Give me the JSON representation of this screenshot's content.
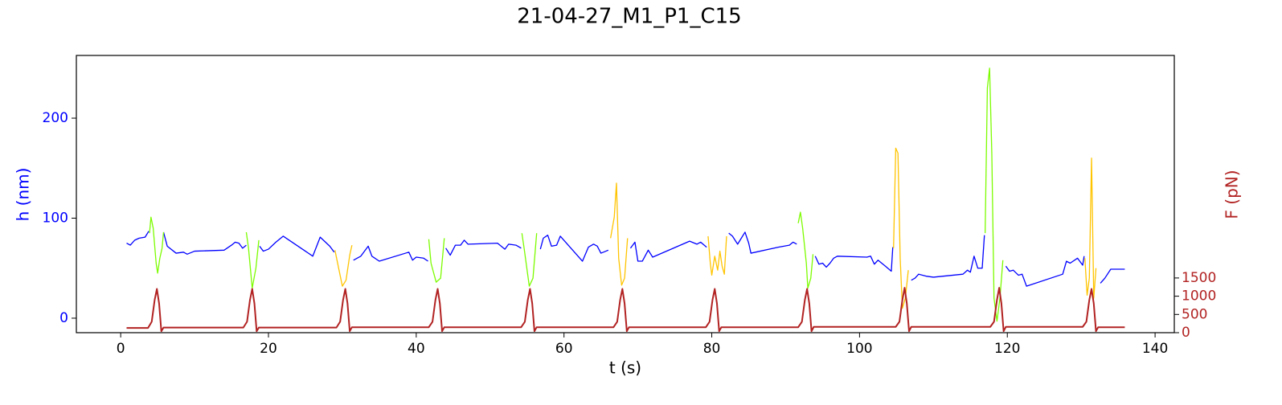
{
  "chart_data": {
    "type": "line",
    "title": "21-04-27_M1_P1_C15",
    "xlabel": "t (s)",
    "ylabel": "h (nm)",
    "y2label": "F (pN)",
    "ylabel_color": "#0000ff",
    "y2label_color": "#b22222",
    "xlim": [
      -6,
      142.6
    ],
    "ylim": [
      -14.5,
      262.7
    ],
    "y2lim": [
      0,
      7600
    ],
    "xticks": [
      0,
      20,
      40,
      60,
      80,
      100,
      120,
      140
    ],
    "yticks": [
      0,
      100,
      200
    ],
    "y2ticks": [
      0,
      500,
      1000,
      1500
    ],
    "series": [
      {
        "color": "#0000ff",
        "x": [
          0.8,
          1.3,
          1.9,
          2.5,
          3.3,
          3.8,
          null,
          5.8,
          6.3,
          7.5,
          8.5,
          9.0,
          10,
          14,
          15,
          15.5,
          16,
          16.5,
          17,
          null,
          18.8,
          19.3,
          20,
          21,
          22,
          26,
          27,
          28.3,
          28.9,
          null,
          31.5,
          32.5,
          33.5,
          34,
          35,
          39,
          39.5,
          40,
          41,
          41.6,
          null,
          44,
          44.6,
          45.3,
          46,
          46.5,
          47,
          51,
          52,
          52.5,
          53.5,
          54.2,
          null,
          56.8,
          57.2,
          57.8,
          58.3,
          59,
          59.5,
          62.5,
          63.3,
          64,
          64.5,
          65,
          66,
          null,
          69,
          69.6,
          70,
          70.6,
          71.4,
          72,
          77,
          78,
          78.5,
          79.3,
          null,
          82.3,
          82.8,
          83.5,
          84,
          84.5,
          85,
          85.3,
          89,
          90.5,
          91,
          91.5,
          null,
          94,
          94.5,
          95,
          95.5,
          96,
          96.5,
          97,
          101,
          101.5,
          102,
          102.5,
          103.5,
          104.3,
          104.5,
          null,
          107,
          107.5,
          108,
          109,
          110,
          114,
          114.6,
          115,
          115.5,
          116,
          116.6,
          116.9,
          null,
          119.8,
          120.3,
          120.8,
          121.5,
          122,
          122.6,
          127.5,
          128,
          128.5,
          129.5,
          130.2,
          130.4,
          null,
          132.6,
          133.2,
          134,
          135,
          135.9
        ],
        "values": [
          75,
          73,
          78,
          80,
          81,
          87,
          null,
          86,
          72,
          65,
          66,
          64,
          67,
          68,
          73,
          76,
          75,
          70,
          73,
          null,
          72,
          67,
          69,
          76,
          82,
          62,
          81,
          72,
          66,
          null,
          58,
          62,
          72,
          62,
          57,
          66,
          58,
          61,
          60,
          57,
          null,
          70,
          63,
          73,
          73,
          78,
          74,
          75,
          69,
          74,
          73,
          70,
          null,
          69,
          80,
          83,
          72,
          73,
          82,
          57,
          71,
          74,
          72,
          65,
          68,
          null,
          70,
          76,
          57,
          57,
          68,
          61,
          77,
          74,
          76,
          71,
          null,
          85,
          82,
          74,
          80,
          86,
          75,
          65,
          71,
          73,
          76,
          74,
          null,
          62,
          54,
          55,
          51,
          55,
          60,
          62,
          61,
          62,
          54,
          58,
          52,
          47,
          71,
          null,
          38,
          40,
          44,
          42,
          41,
          44,
          48,
          46,
          62,
          50,
          50,
          83,
          null,
          52,
          47,
          48,
          43,
          44,
          32,
          44,
          57,
          55,
          60,
          53,
          62,
          null,
          35,
          40,
          49,
          49,
          49
        ]
      },
      {
        "color": "#7cfc00",
        "x": [
          3.9,
          4.1,
          4.4,
          4.8,
          5.0,
          5.3,
          5.6,
          5.8,
          null,
          17.0,
          17.3,
          17.8,
          18.3,
          18.7,
          null,
          41.7,
          42,
          42.7,
          43.3,
          43.8,
          null,
          54.3,
          54.6,
          55.3,
          55.8,
          56.3,
          null,
          91.7,
          92,
          92.3,
          92.8,
          93,
          93.4,
          93.7,
          null,
          117,
          117.3,
          117.6,
          117.9,
          118.2,
          118.6,
          119,
          119.4
        ],
        "values": [
          85,
          101,
          90,
          55,
          45,
          60,
          70,
          86,
          null,
          86,
          70,
          30,
          50,
          78,
          null,
          79,
          55,
          36,
          40,
          80,
          null,
          85,
          70,
          32,
          40,
          85,
          null,
          95,
          106,
          90,
          55,
          30,
          40,
          64,
          null,
          85,
          230,
          250,
          165,
          20,
          -3,
          20,
          58
        ]
      },
      {
        "color": "#ffc400",
        "x": [
          29.0,
          29.5,
          30,
          30.5,
          31,
          31.3,
          null,
          66.3,
          66.8,
          67.1,
          67.4,
          67.8,
          68.2,
          68.6,
          null,
          79.5,
          79.8,
          80,
          80.4,
          80.8,
          81.1,
          81.4,
          81.7,
          82,
          null,
          104.6,
          104.9,
          105.2,
          105.5,
          105.8,
          106.2,
          106.6,
          null,
          130.5,
          130.8,
          131.1,
          131.4,
          131.7,
          132
        ],
        "values": [
          68,
          50,
          32,
          38,
          63,
          73,
          null,
          80,
          101,
          135,
          60,
          33,
          40,
          80,
          null,
          82,
          55,
          43,
          62,
          48,
          67,
          52,
          44,
          82,
          null,
          70,
          170,
          165,
          60,
          10,
          20,
          48,
          null,
          60,
          23,
          40,
          160,
          20,
          50
        ]
      },
      {
        "color": "#b22222",
        "axis": "y2",
        "x": [
          0.8,
          3.7,
          4.2,
          4.6,
          4.9,
          5.2,
          5.5,
          5.8,
          16.6,
          17.1,
          17.5,
          17.8,
          18.1,
          18.4,
          18.7,
          29.2,
          29.7,
          30.1,
          30.4,
          30.7,
          31.0,
          31.3,
          41.7,
          42.2,
          42.6,
          42.9,
          43.2,
          43.5,
          43.8,
          54.2,
          54.7,
          55.1,
          55.4,
          55.7,
          56.0,
          56.3,
          66.7,
          67.2,
          67.6,
          67.9,
          68.2,
          68.5,
          68.8,
          79.2,
          79.7,
          80.1,
          80.4,
          80.7,
          81.0,
          81.3,
          91.7,
          92.2,
          92.6,
          92.9,
          93.2,
          93.5,
          93.8,
          104.9,
          105.4,
          105.8,
          106.1,
          106.4,
          106.7,
          107.0,
          117.7,
          118.2,
          118.6,
          118.9,
          119.2,
          119.5,
          119.8,
          130.2,
          130.7,
          131.1,
          131.4,
          131.7,
          132.0,
          132.3,
          135.9
        ],
        "values": [
          130,
          130,
          300,
          900,
          1200,
          800,
          40,
          140,
          140,
          300,
          900,
          1200,
          800,
          40,
          140,
          140,
          300,
          900,
          1200,
          800,
          40,
          150,
          150,
          300,
          900,
          1200,
          800,
          40,
          150,
          150,
          300,
          900,
          1200,
          800,
          40,
          150,
          150,
          300,
          900,
          1200,
          800,
          40,
          150,
          150,
          300,
          900,
          1200,
          800,
          40,
          150,
          150,
          300,
          900,
          1200,
          800,
          40,
          160,
          160,
          300,
          900,
          1230,
          800,
          40,
          160,
          160,
          300,
          900,
          1230,
          800,
          40,
          160,
          160,
          300,
          900,
          1200,
          800,
          40,
          150,
          150
        ]
      }
    ]
  }
}
